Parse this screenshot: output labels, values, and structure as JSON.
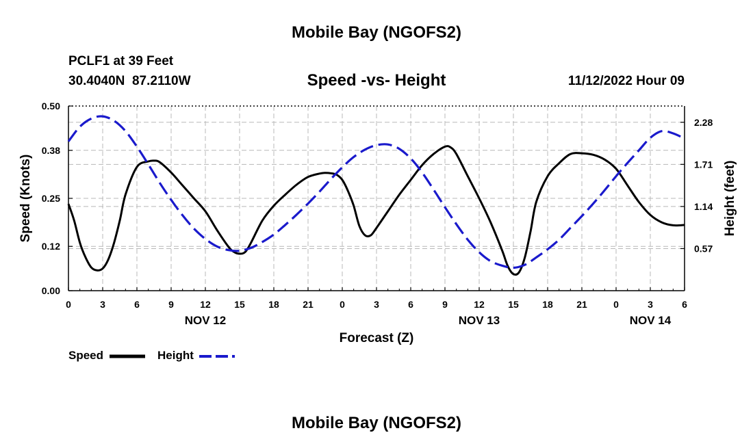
{
  "header": {
    "title": "Mobile Bay (NGOFS2)",
    "station_line": "PCLF1 at 39 Feet",
    "coords_line": "30.4040N  87.2110W",
    "subtitle": "Speed -vs- Height",
    "timestamp": "11/12/2022 Hour 09"
  },
  "footer": {
    "title": "Mobile Bay (NGOFS2)"
  },
  "chart_data": {
    "type": "line",
    "title": "Mobile Bay (NGOFS2)",
    "subtitle": "Speed -vs- Height",
    "xlabel": "Forecast (Z)",
    "ylabel": "Speed (Knots)",
    "y2label": "Height (feet)",
    "x_unit": "forecast hours from 11/12/2022 00Z",
    "xlim": [
      0,
      54
    ],
    "x_ticks": [
      0,
      3,
      6,
      9,
      12,
      15,
      18,
      21,
      24,
      27,
      30,
      33,
      36,
      39,
      42,
      45,
      48,
      51,
      54
    ],
    "x_tick_labels": [
      "0",
      "3",
      "6",
      "9",
      "12",
      "15",
      "18",
      "21",
      "0",
      "3",
      "6",
      "9",
      "12",
      "15",
      "18",
      "21",
      "0",
      "3",
      "6"
    ],
    "date_labels": [
      {
        "x": 12,
        "label": "NOV 12"
      },
      {
        "x": 36,
        "label": "NOV 13"
      },
      {
        "x": 51,
        "label": "NOV 14"
      }
    ],
    "ylim": [
      0,
      0.5
    ],
    "y_ticks": [
      0,
      0.12,
      0.25,
      0.38,
      0.5
    ],
    "y_tick_labels": [
      "0.00",
      "0.12",
      "0.25",
      "0.38",
      "0.50"
    ],
    "y2lim": [
      0,
      2.5
    ],
    "y2_ticks": [
      0.57,
      1.14,
      1.71,
      2.28
    ],
    "y2_tick_labels": [
      "0.57",
      "1.14",
      "1.71",
      "2.28"
    ],
    "grid": true,
    "legend_position": "bottom-left",
    "series": [
      {
        "name": "Speed",
        "axis": "left",
        "color": "#000000",
        "style": "solid",
        "x": [
          0,
          0.5,
          1,
          1.5,
          2,
          2.5,
          3,
          3.5,
          4,
          4.5,
          5,
          6,
          7,
          7.5,
          8,
          9,
          10,
          11,
          12,
          13,
          14,
          14.5,
          15,
          15.5,
          16,
          17,
          18,
          19,
          20,
          21,
          22,
          22.5,
          23,
          23.5,
          24,
          24.5,
          25,
          25.5,
          26,
          26.5,
          27,
          28,
          29,
          30,
          31,
          32,
          33,
          33.5,
          34,
          35,
          36,
          37,
          38,
          38.5,
          39,
          39.5,
          40,
          40.5,
          41,
          42,
          43,
          44,
          45,
          46,
          47,
          48,
          49,
          50,
          51,
          52,
          53,
          54
        ],
        "values": [
          0.235,
          0.19,
          0.13,
          0.09,
          0.063,
          0.055,
          0.06,
          0.085,
          0.13,
          0.19,
          0.26,
          0.335,
          0.35,
          0.352,
          0.348,
          0.32,
          0.285,
          0.25,
          0.215,
          0.165,
          0.12,
          0.105,
          0.1,
          0.105,
          0.13,
          0.19,
          0.23,
          0.26,
          0.287,
          0.308,
          0.317,
          0.319,
          0.318,
          0.314,
          0.3,
          0.27,
          0.23,
          0.175,
          0.15,
          0.15,
          0.17,
          0.215,
          0.26,
          0.3,
          0.34,
          0.37,
          0.39,
          0.388,
          0.37,
          0.31,
          0.25,
          0.185,
          0.11,
          0.067,
          0.045,
          0.05,
          0.09,
          0.16,
          0.24,
          0.31,
          0.345,
          0.37,
          0.372,
          0.368,
          0.355,
          0.33,
          0.285,
          0.24,
          0.205,
          0.185,
          0.177,
          0.178
        ]
      },
      {
        "name": "Height",
        "axis": "right",
        "color": "#1a1acc",
        "style": "dashed",
        "x": [
          0,
          1,
          2,
          3,
          4,
          5,
          6,
          7,
          8,
          9,
          10,
          11,
          12,
          13,
          14,
          15,
          16,
          17,
          18,
          19,
          20,
          21,
          22,
          23,
          24,
          25,
          26,
          27,
          28,
          29,
          30,
          31,
          32,
          33,
          34,
          35,
          36,
          37,
          38,
          39,
          40,
          41,
          42,
          43,
          44,
          45,
          46,
          47,
          48,
          49,
          50,
          51,
          52,
          53,
          54
        ],
        "values": [
          2.02,
          2.22,
          2.33,
          2.36,
          2.3,
          2.16,
          1.95,
          1.71,
          1.46,
          1.23,
          1.02,
          0.84,
          0.7,
          0.6,
          0.55,
          0.54,
          0.58,
          0.66,
          0.76,
          0.89,
          1.03,
          1.18,
          1.34,
          1.51,
          1.67,
          1.81,
          1.91,
          1.97,
          1.98,
          1.92,
          1.79,
          1.6,
          1.37,
          1.13,
          0.9,
          0.69,
          0.52,
          0.4,
          0.34,
          0.31,
          0.35,
          0.45,
          0.56,
          0.69,
          0.85,
          1.01,
          1.18,
          1.36,
          1.55,
          1.73,
          1.9,
          2.07,
          2.16,
          2.13,
          2.06
        ]
      }
    ]
  }
}
